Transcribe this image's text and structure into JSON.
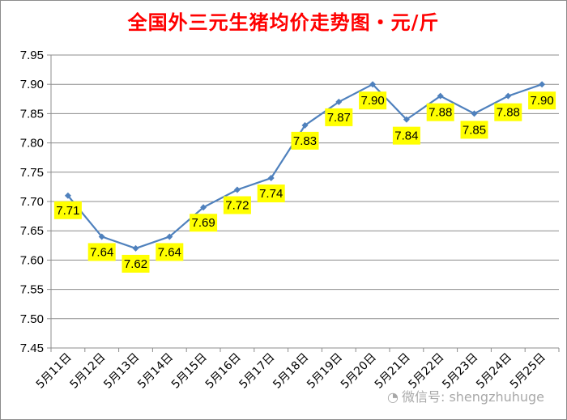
{
  "chart_data": {
    "type": "line",
    "title": "全国外三元生猪均价走势图・元/斤",
    "categories": [
      "5月11日",
      "5月12日",
      "5月13日",
      "5月14日",
      "5月15日",
      "5月16日",
      "5月17日",
      "5月18日",
      "5月19日",
      "5月20日",
      "5月21日",
      "5月22日",
      "5月23日",
      "5月24日",
      "5月25日"
    ],
    "values": [
      7.71,
      7.64,
      7.62,
      7.64,
      7.69,
      7.72,
      7.74,
      7.83,
      7.87,
      7.9,
      7.84,
      7.88,
      7.85,
      7.88,
      7.9
    ],
    "data_labels": [
      "7.71",
      "7.64",
      "7.62",
      "7.64",
      "7.69",
      "7.72",
      "7.74",
      "7.83",
      "7.87",
      "7.90",
      "7.84",
      "7.88",
      "7.85",
      "7.88",
      "7.90"
    ],
    "y_ticks": [
      "7.45",
      "7.50",
      "7.55",
      "7.60",
      "7.65",
      "7.70",
      "7.75",
      "7.80",
      "7.85",
      "7.90",
      "7.95"
    ],
    "ylim": [
      7.45,
      7.95
    ],
    "ystep": 0.05,
    "grid": "horizontal",
    "line_color": "#4f81bd",
    "label_bg": "#ffff00"
  },
  "watermark": {
    "text": "微信号: shengzhuhuge",
    "icon": "wechat-icon"
  }
}
